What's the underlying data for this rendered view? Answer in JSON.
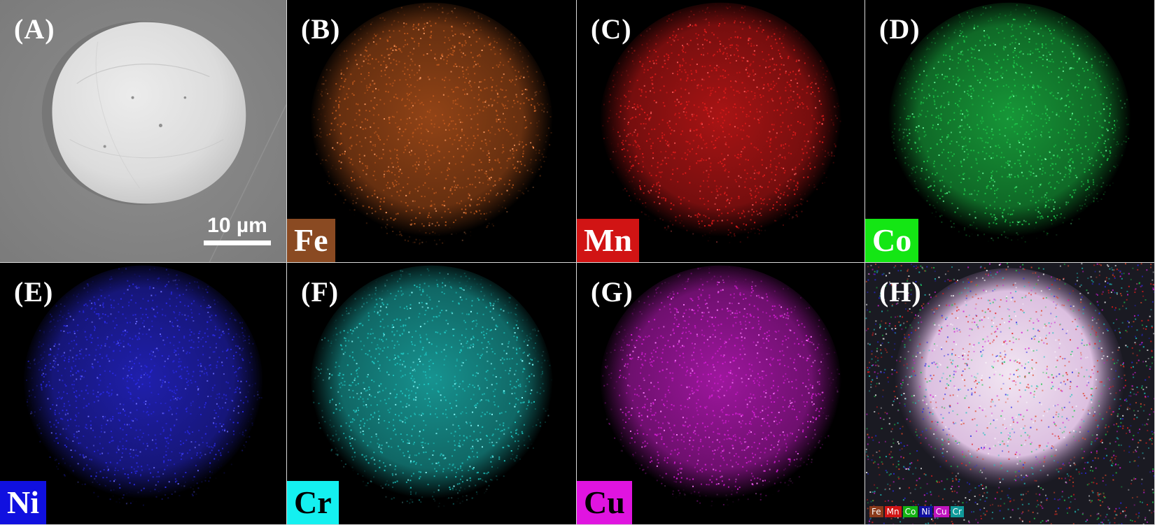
{
  "panels": [
    {
      "id": "A",
      "label": "(A)",
      "type": "sem",
      "scale_bar": "10 µm"
    },
    {
      "id": "B",
      "label": "(B)",
      "type": "map",
      "element": "Fe",
      "color": "#c25a1e",
      "tag_bg": "#8a4a22",
      "tag_fg": "#ffffff"
    },
    {
      "id": "C",
      "label": "(C)",
      "type": "map",
      "element": "Mn",
      "color": "#e01b1b",
      "tag_bg": "#d11414",
      "tag_fg": "#ffffff"
    },
    {
      "id": "D",
      "label": "(D)",
      "type": "map",
      "element": "Co",
      "color": "#1ec84a",
      "tag_bg": "#14e614",
      "tag_fg": "#ffffff"
    },
    {
      "id": "E",
      "label": "(E)",
      "type": "map",
      "element": "Ni",
      "color": "#2a2ae6",
      "tag_bg": "#1010e0",
      "tag_fg": "#ffffff"
    },
    {
      "id": "F",
      "label": "(F)",
      "type": "map",
      "element": "Cr",
      "color": "#1fc4c0",
      "tag_bg": "#14f0f0",
      "tag_fg": "#000000"
    },
    {
      "id": "G",
      "label": "(G)",
      "type": "map",
      "element": "Cu",
      "color": "#d21ed2",
      "tag_bg": "#e014e0",
      "tag_fg": "#000000"
    },
    {
      "id": "H",
      "label": "(H)",
      "type": "overlay",
      "legend": [
        {
          "element": "Fe",
          "bg": "#8a3a1a"
        },
        {
          "element": "Mn",
          "bg": "#d11414"
        },
        {
          "element": "Co",
          "bg": "#14b414"
        },
        {
          "element": "Ni",
          "bg": "#1010a0"
        },
        {
          "element": "Cu",
          "bg": "#c014c0"
        },
        {
          "element": "Cr",
          "bg": "#109a9a"
        }
      ]
    }
  ]
}
